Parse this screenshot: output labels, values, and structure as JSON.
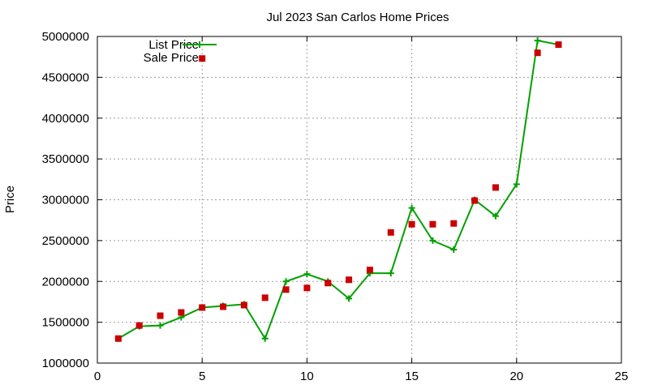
{
  "chart_data": {
    "type": "line",
    "title": "Jul 2023 San Carlos Home Prices",
    "xlabel": "",
    "ylabel": "Price",
    "xlim": [
      0,
      25
    ],
    "ylim": [
      1000000,
      5000000
    ],
    "xticks": [
      0,
      5,
      10,
      15,
      20,
      25
    ],
    "yticks": [
      1000000,
      1500000,
      2000000,
      2500000,
      3000000,
      3500000,
      4000000,
      4500000,
      5000000
    ],
    "grid": true,
    "legend_position": "top-left",
    "series": [
      {
        "name": "List Price",
        "style": "line-with-plus-markers",
        "color": "#00a000",
        "x": [
          1,
          2,
          3,
          4,
          5,
          6,
          7,
          8,
          9,
          10,
          11,
          12,
          13,
          14,
          15,
          16,
          17,
          18,
          19,
          20,
          21,
          22
        ],
        "values": [
          1300000,
          1450000,
          1460000,
          1560000,
          1680000,
          1700000,
          1720000,
          1300000,
          2000000,
          2090000,
          2000000,
          1790000,
          2100000,
          2100000,
          2900000,
          2500000,
          2390000,
          3000000,
          2800000,
          3190000,
          4950000,
          4900000
        ]
      },
      {
        "name": "Sale Price",
        "style": "square-markers",
        "color": "#cc0000",
        "x": [
          1,
          2,
          3,
          4,
          5,
          6,
          7,
          8,
          9,
          10,
          11,
          12,
          13,
          14,
          15,
          16,
          17,
          18,
          19,
          21,
          22,
          5
        ],
        "values": [
          1300000,
          1460000,
          1580000,
          1620000,
          1680000,
          1690000,
          1710000,
          1800000,
          1900000,
          1920000,
          1980000,
          2020000,
          2140000,
          2600000,
          2700000,
          2700000,
          2710000,
          2990000,
          3150000,
          4800000,
          4900000,
          4730000
        ]
      }
    ]
  }
}
